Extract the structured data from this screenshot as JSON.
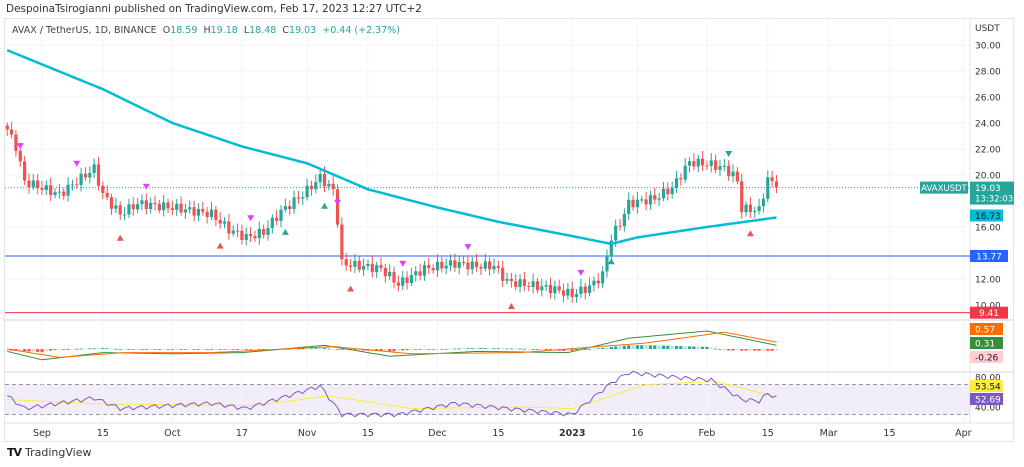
{
  "published": "DespoinaTsirogianni published on TradingView.com, Feb 17, 2023 12:27 UTC+2",
  "legend": {
    "symbol": "AVAX / TetherUS, 1D, BINANCE",
    "o_label": "O",
    "o": "18.59",
    "h_label": "H",
    "h": "19.18",
    "l_label": "L",
    "l": "18.48",
    "c_label": "C",
    "c": "19.03",
    "change": "+0.44 (+2.37%)"
  },
  "footer": {
    "logo": "TV",
    "brand": "TradingView"
  },
  "colors": {
    "up": "#26a69a",
    "down": "#ef5350",
    "ma": "#00bcd4",
    "support": "#2962ff",
    "resistance_low": "#f23645",
    "macd": "#ff6d00",
    "signal": "#388e3c",
    "rsi": "#7e57c2",
    "rsi_ma": "#ffeb3b"
  },
  "chart_data": {
    "type": "candlestick",
    "currency": "USDT",
    "price_ticks": [
      "30.00",
      "28.00",
      "26.00",
      "24.00",
      "22.00",
      "20.00",
      "16.00",
      "12.00",
      "10.00"
    ],
    "time_ticks": [
      {
        "date": "2022-09-01",
        "label": "Sep"
      },
      {
        "date": "2022-09-15",
        "label": "15"
      },
      {
        "date": "2022-10-01",
        "label": "Oct"
      },
      {
        "date": "2022-10-17",
        "label": "17"
      },
      {
        "date": "2022-11-01",
        "label": "Nov"
      },
      {
        "date": "2022-11-15",
        "label": "15"
      },
      {
        "date": "2022-12-01",
        "label": "Dec"
      },
      {
        "date": "2022-12-15",
        "label": "15"
      },
      {
        "date": "2023-01-01",
        "label": "2023"
      },
      {
        "date": "2023-01-16",
        "label": "16"
      },
      {
        "date": "2023-02-01",
        "label": "Feb"
      },
      {
        "date": "2023-02-15",
        "label": "15"
      },
      {
        "date": "2023-03-01",
        "label": "Mar"
      },
      {
        "date": "2023-03-15",
        "label": "15"
      },
      {
        "date": "2023-04-01",
        "label": "Apr"
      }
    ],
    "close_keypoints": [
      [
        "2022-08-24",
        23.5
      ],
      [
        "2022-08-26",
        22.2
      ],
      [
        "2022-08-28",
        19.5
      ],
      [
        "2022-09-01",
        19.0
      ],
      [
        "2022-09-05",
        18.5
      ],
      [
        "2022-09-09",
        19.5
      ],
      [
        "2022-09-13",
        20.5
      ],
      [
        "2022-09-15",
        18.5
      ],
      [
        "2022-09-19",
        17.0
      ],
      [
        "2022-09-23",
        17.8
      ],
      [
        "2022-10-01",
        17.5
      ],
      [
        "2022-10-10",
        17.0
      ],
      [
        "2022-10-14",
        15.8
      ],
      [
        "2022-10-18",
        15.2
      ],
      [
        "2022-10-22",
        15.6
      ],
      [
        "2022-10-26",
        17.2
      ],
      [
        "2022-10-31",
        18.5
      ],
      [
        "2022-11-04",
        19.8
      ],
      [
        "2022-11-07",
        18.8
      ],
      [
        "2022-11-08",
        16.5
      ],
      [
        "2022-11-09",
        13.2
      ],
      [
        "2022-11-13",
        13.0
      ],
      [
        "2022-11-18",
        12.8
      ],
      [
        "2022-11-22",
        11.6
      ],
      [
        "2022-11-28",
        12.8
      ],
      [
        "2022-12-05",
        13.2
      ],
      [
        "2022-12-10",
        13.0
      ],
      [
        "2022-12-14",
        13.0
      ],
      [
        "2022-12-17",
        11.8
      ],
      [
        "2022-12-21",
        11.6
      ],
      [
        "2022-12-28",
        11.2
      ],
      [
        "2023-01-01",
        10.8
      ],
      [
        "2023-01-05",
        11.4
      ],
      [
        "2023-01-08",
        12.3
      ],
      [
        "2023-01-10",
        15.2
      ],
      [
        "2023-01-12",
        16.3
      ],
      [
        "2023-01-14",
        17.8
      ],
      [
        "2023-01-20",
        18.2
      ],
      [
        "2023-01-24",
        19.0
      ],
      [
        "2023-01-28",
        21.0
      ],
      [
        "2023-02-02",
        20.8
      ],
      [
        "2023-02-05",
        20.5
      ],
      [
        "2023-02-07",
        20.0
      ],
      [
        "2023-02-08",
        19.5
      ],
      [
        "2023-02-09",
        17.4
      ],
      [
        "2023-02-13",
        17.3
      ],
      [
        "2023-02-15",
        19.7
      ],
      [
        "2023-02-17",
        19.03
      ]
    ],
    "ma_keypoints": [
      [
        "2022-08-24",
        29.6
      ],
      [
        "2022-09-15",
        26.6
      ],
      [
        "2022-10-01",
        24.0
      ],
      [
        "2022-10-17",
        22.2
      ],
      [
        "2022-11-01",
        20.9
      ],
      [
        "2022-11-15",
        18.9
      ],
      [
        "2022-12-01",
        17.5
      ],
      [
        "2022-12-15",
        16.4
      ],
      [
        "2023-01-01",
        15.3
      ],
      [
        "2023-01-10",
        14.7
      ],
      [
        "2023-01-16",
        15.2
      ],
      [
        "2023-02-01",
        16.0
      ],
      [
        "2023-02-17",
        16.73
      ]
    ],
    "markers": [
      {
        "date": "2022-08-27",
        "type": "sell",
        "color": "#e040fb"
      },
      {
        "date": "2022-09-09",
        "type": "sell",
        "color": "#e040fb"
      },
      {
        "date": "2022-09-19",
        "type": "buy",
        "color": "#ef5350"
      },
      {
        "date": "2022-09-25",
        "type": "sell",
        "color": "#e040fb"
      },
      {
        "date": "2022-10-12",
        "type": "buy",
        "color": "#ef5350"
      },
      {
        "date": "2022-10-19",
        "type": "sell",
        "color": "#e040fb"
      },
      {
        "date": "2022-10-27",
        "type": "buy",
        "color": "#26a69a"
      },
      {
        "date": "2022-11-05",
        "type": "buy",
        "color": "#26a69a"
      },
      {
        "date": "2022-11-08",
        "type": "sell",
        "color": "#e040fb"
      },
      {
        "date": "2022-11-11",
        "type": "buy",
        "color": "#ef5350"
      },
      {
        "date": "2022-11-23",
        "type": "sell",
        "color": "#e040fb"
      },
      {
        "date": "2022-12-08",
        "type": "sell",
        "color": "#e040fb"
      },
      {
        "date": "2022-12-18",
        "type": "buy",
        "color": "#ef5350"
      },
      {
        "date": "2023-01-03",
        "type": "sell",
        "color": "#e040fb"
      },
      {
        "date": "2023-01-10",
        "type": "buy",
        "color": "#26a69a"
      },
      {
        "date": "2023-02-06",
        "type": "sell",
        "color": "#26a69a"
      },
      {
        "date": "2023-02-11",
        "type": "buy",
        "color": "#ef5350"
      }
    ],
    "hlines": [
      {
        "value": 13.77,
        "label": "13.77",
        "color": "#2962ff"
      },
      {
        "value": 9.41,
        "label": "9.41",
        "color": "#f23645"
      }
    ],
    "last": {
      "symbol": "AVAXUSDT",
      "price": "19.03",
      "countdown": "13:32:03",
      "ma_label": "16.73"
    },
    "macd": {
      "labels": [
        "0.57",
        "0.31",
        "-0.26"
      ],
      "macd_keypoints": [
        [
          "2022-08-24",
          -0.2
        ],
        [
          "2022-09-01",
          -0.9
        ],
        [
          "2022-09-15",
          -0.3
        ],
        [
          "2022-10-01",
          -0.4
        ],
        [
          "2022-10-17",
          -0.3
        ],
        [
          "2022-11-05",
          0.3
        ],
        [
          "2022-11-20",
          -0.6
        ],
        [
          "2022-12-10",
          -0.2
        ],
        [
          "2022-12-31",
          -0.3
        ],
        [
          "2023-01-14",
          0.9
        ],
        [
          "2023-02-01",
          1.5
        ],
        [
          "2023-02-17",
          0.31
        ]
      ],
      "signal_keypoints": [
        [
          "2022-08-24",
          0.0
        ],
        [
          "2022-09-05",
          -0.7
        ],
        [
          "2022-09-20",
          -0.3
        ],
        [
          "2022-10-10",
          -0.3
        ],
        [
          "2022-11-07",
          0.2
        ],
        [
          "2022-11-25",
          -0.4
        ],
        [
          "2022-12-20",
          -0.3
        ],
        [
          "2023-01-18",
          0.5
        ],
        [
          "2023-02-05",
          1.4
        ],
        [
          "2023-02-17",
          0.57
        ]
      ]
    },
    "rsi": {
      "ticks": [
        "80.00",
        "40.00"
      ],
      "labels": [
        "53.54",
        "52.69"
      ],
      "bands": [
        70,
        30
      ],
      "rsi_keypoints": [
        [
          "2022-08-24",
          55
        ],
        [
          "2022-08-28",
          38
        ],
        [
          "2022-09-13",
          52
        ],
        [
          "2022-09-19",
          38
        ],
        [
          "2022-10-10",
          45
        ],
        [
          "2022-10-18",
          38
        ],
        [
          "2022-11-04",
          68
        ],
        [
          "2022-11-09",
          30
        ],
        [
          "2022-11-22",
          30
        ],
        [
          "2022-12-05",
          45
        ],
        [
          "2022-12-17",
          38
        ],
        [
          "2023-01-01",
          30
        ],
        [
          "2023-01-10",
          72
        ],
        [
          "2023-01-14",
          86
        ],
        [
          "2023-01-28",
          78
        ],
        [
          "2023-02-02",
          76
        ],
        [
          "2023-02-09",
          50
        ],
        [
          "2023-02-13",
          48
        ],
        [
          "2023-02-15",
          58
        ],
        [
          "2023-02-17",
          52.69
        ]
      ],
      "ma_keypoints": [
        [
          "2022-08-24",
          50
        ],
        [
          "2022-09-15",
          44
        ],
        [
          "2022-10-20",
          42
        ],
        [
          "2022-11-06",
          55
        ],
        [
          "2022-11-25",
          38
        ],
        [
          "2022-12-20",
          40
        ],
        [
          "2023-01-01",
          38
        ],
        [
          "2023-01-18",
          70
        ],
        [
          "2023-02-03",
          74
        ],
        [
          "2023-02-17",
          53.54
        ]
      ]
    }
  }
}
